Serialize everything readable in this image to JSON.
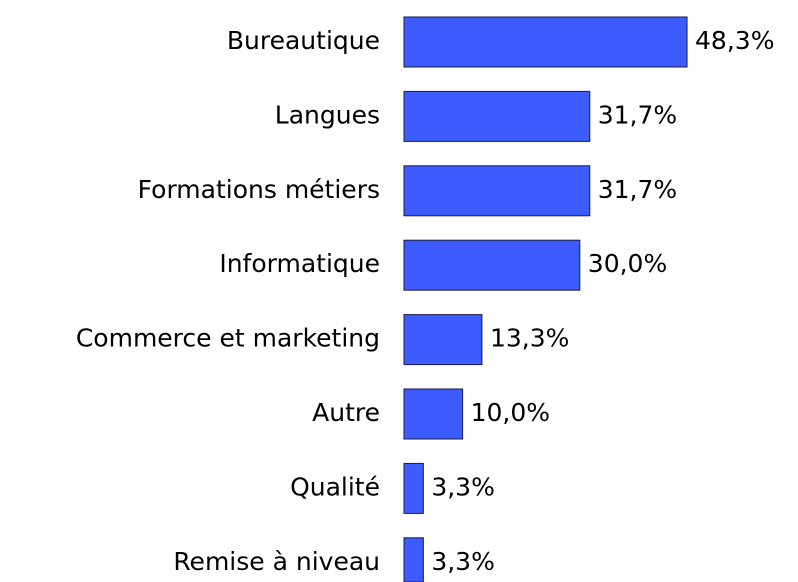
{
  "chart_data": {
    "type": "bar",
    "orientation": "horizontal",
    "categories": [
      "Bureautique",
      "Langues",
      "Formations métiers",
      "Informatique",
      "Commerce et marketing",
      "Autre",
      "Qualité",
      "Remise à niveau"
    ],
    "values": [
      48.3,
      31.7,
      31.7,
      30.0,
      13.3,
      10.0,
      3.3,
      3.3
    ],
    "value_labels": [
      "48,3%",
      "31,7%",
      "31,7%",
      "30,0%",
      "13,3%",
      "10,0%",
      "3,3%",
      "3,3%"
    ],
    "color": "#3d5cff"
  }
}
